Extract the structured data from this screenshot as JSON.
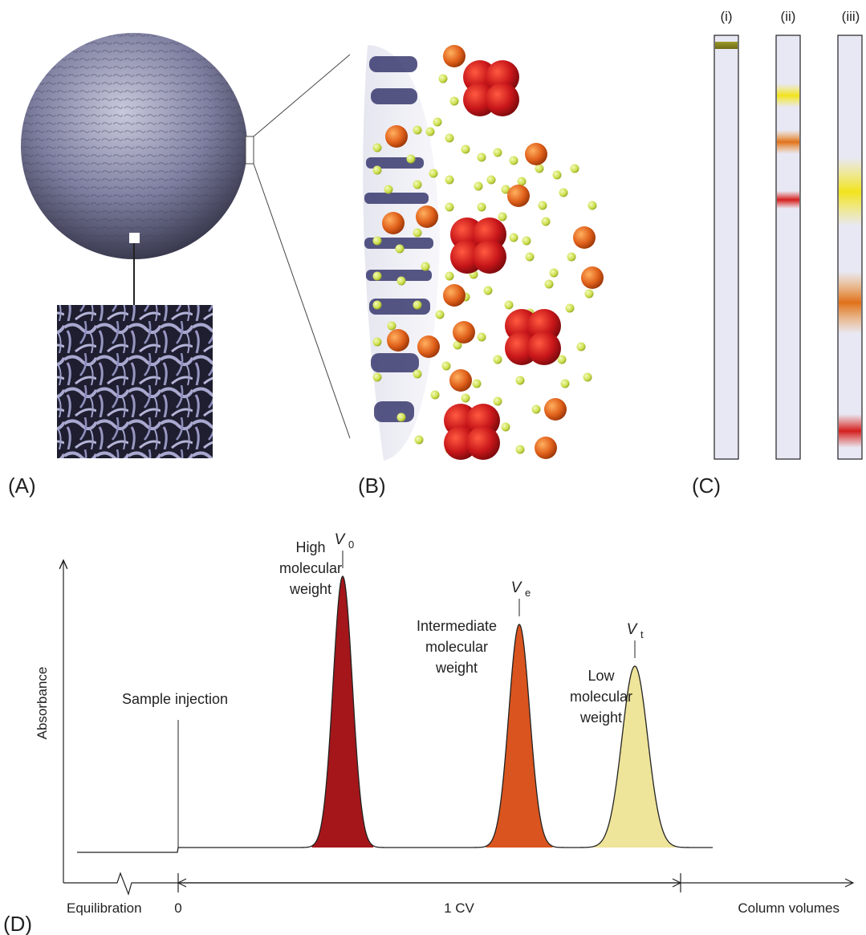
{
  "panels": {
    "a": {
      "label": "(A)"
    },
    "b": {
      "label": "(B)"
    },
    "c": {
      "label": "(C)",
      "columns": [
        "(i)",
        "(ii)",
        "(iii)"
      ]
    },
    "d": {
      "label": "(D)"
    }
  },
  "chromatogram": {
    "ylabel": "Absorbance",
    "injection_label": "Sample injection",
    "x_labels": {
      "equilibration": "Equilibration",
      "zero": "0",
      "cv": "1 CV",
      "axis": "Column volumes"
    },
    "peaks": [
      {
        "symbol": "V",
        "subscript": "0",
        "label_lines": [
          "High",
          "molecular",
          "weight"
        ],
        "color": "#a4161a"
      },
      {
        "symbol": "V",
        "subscript": "e",
        "label_lines": [
          "Intermediate",
          "molecular",
          "weight"
        ],
        "color": "#d9541e"
      },
      {
        "symbol": "V",
        "subscript": "t",
        "label_lines": [
          "Low",
          "molecular",
          "weight"
        ],
        "color": "#eee49a"
      }
    ]
  },
  "colors": {
    "gel_bead": "#8a8aa8",
    "large_molecule": "#c0151a",
    "medium_molecule": "#e0601a",
    "small_molecule": "#d4e35a",
    "column_fill": "#e8e8f4"
  }
}
